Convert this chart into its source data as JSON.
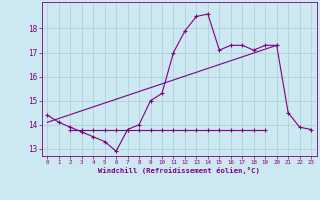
{
  "line1_x": [
    0,
    1,
    2,
    3,
    4,
    5,
    6,
    7,
    8,
    9,
    10,
    11,
    12,
    13,
    14,
    15,
    16,
    17,
    18,
    19,
    20,
    21,
    22,
    23
  ],
  "line1_y": [
    14.4,
    14.1,
    13.9,
    13.7,
    13.5,
    13.3,
    12.9,
    13.8,
    14.0,
    15.0,
    15.3,
    17.0,
    17.9,
    18.5,
    18.6,
    17.1,
    17.3,
    17.3,
    17.1,
    17.3,
    17.3,
    14.5,
    13.9,
    13.8
  ],
  "line2_x": [
    2,
    3,
    4,
    5,
    6,
    7,
    8,
    9,
    10,
    11,
    12,
    13,
    14,
    15,
    16,
    17,
    18,
    19
  ],
  "line2_y": [
    13.8,
    13.8,
    13.8,
    13.8,
    13.8,
    13.8,
    13.8,
    13.8,
    13.8,
    13.8,
    13.8,
    13.8,
    13.8,
    13.8,
    13.8,
    13.8,
    13.8,
    13.8
  ],
  "line3_x": [
    0,
    20
  ],
  "line3_y": [
    14.1,
    17.3
  ],
  "xlabel": "Windchill (Refroidissement éolien,°C)",
  "ylim": [
    12.7,
    19.1
  ],
  "xlim": [
    -0.5,
    23.5
  ],
  "color": "#800080",
  "bg_color": "#cce8f0",
  "grid_color": "#aaccd8",
  "yticks": [
    13,
    14,
    15,
    16,
    17,
    18
  ],
  "xticks": [
    0,
    1,
    2,
    3,
    4,
    5,
    6,
    7,
    8,
    9,
    10,
    11,
    12,
    13,
    14,
    15,
    16,
    17,
    18,
    19,
    20,
    21,
    22,
    23
  ]
}
